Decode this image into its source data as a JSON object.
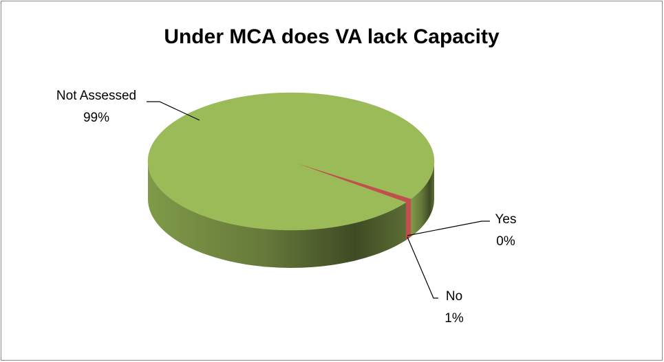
{
  "chart_data": {
    "type": "pie",
    "title": "Under MCA does VA lack Capacity",
    "categories": [
      "Yes",
      "No",
      "Not Assessed"
    ],
    "values": [
      0,
      1,
      99
    ],
    "value_labels": [
      "0%",
      "1%",
      "99%"
    ],
    "colors": [
      "#4f81bd",
      "#c0504d",
      "#9bbb59"
    ]
  }
}
